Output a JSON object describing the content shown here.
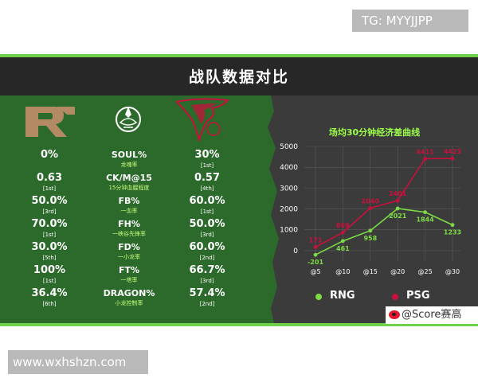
{
  "watermarks": {
    "top": "TG: MYYJJPP",
    "bottom": "www.wxhshzn.com"
  },
  "header": {
    "title": "战队数据对比"
  },
  "teams": {
    "left": {
      "logo": "rng-logo",
      "color": "#7ddc45"
    },
    "right": {
      "logo": "psg-logo",
      "color": "#c8103c"
    },
    "center_icon": "league-emblem-icon"
  },
  "stats": [
    {
      "metric": "SOUL%",
      "sub": "龙魂率",
      "left_value": "0%",
      "left_rank": "",
      "right_value": "30%",
      "right_rank": "[1st]"
    },
    {
      "metric": "CK/M@15",
      "sub": "15分钟血腥程度",
      "left_value": "0.63",
      "left_rank": "[1st]",
      "right_value": "0.57",
      "right_rank": "[4th]"
    },
    {
      "metric": "FB%",
      "sub": "一血率",
      "left_value": "50.0%",
      "left_rank": "[3rd]",
      "right_value": "60.0%",
      "right_rank": "[1st]"
    },
    {
      "metric": "FH%",
      "sub": "一峡谷先锋率",
      "left_value": "70.0%",
      "left_rank": "[1st]",
      "right_value": "50.0%",
      "right_rank": "[3rd]"
    },
    {
      "metric": "FD%",
      "sub": "一小龙率",
      "left_value": "30.0%",
      "left_rank": "[5th]",
      "right_value": "60.0%",
      "right_rank": "[2nd]"
    },
    {
      "metric": "FT%",
      "sub": "一塔率",
      "left_value": "100%",
      "left_rank": "[1st]",
      "right_value": "66.7%",
      "right_rank": "[3rd]"
    },
    {
      "metric": "DRAGON%",
      "sub": "小龙控制率",
      "left_value": "36.4%",
      "left_rank": "[6th]",
      "right_value": "57.4%",
      "right_rank": "[2nd]"
    }
  ],
  "chart_data": {
    "type": "line",
    "title": "场均30分钟经济差曲线",
    "categories": [
      "@5",
      "@10",
      "@15",
      "@20",
      "@25",
      "@30"
    ],
    "series": [
      {
        "name": "RNG",
        "color": "#7ddc45",
        "values": [
          -201,
          461,
          958,
          2021,
          1844,
          1233
        ]
      },
      {
        "name": "PSG",
        "color": "#c8103c",
        "values": [
          171,
          869,
          2040,
          2401,
          4411,
          4423
        ]
      }
    ],
    "ylim": [
      -500,
      5000
    ],
    "yticks": [
      0,
      1000,
      2000,
      3000,
      4000,
      5000
    ],
    "grid": true,
    "legend": "bottom"
  },
  "credit": {
    "icon": "weibo-icon",
    "text": "@Score赛高"
  }
}
